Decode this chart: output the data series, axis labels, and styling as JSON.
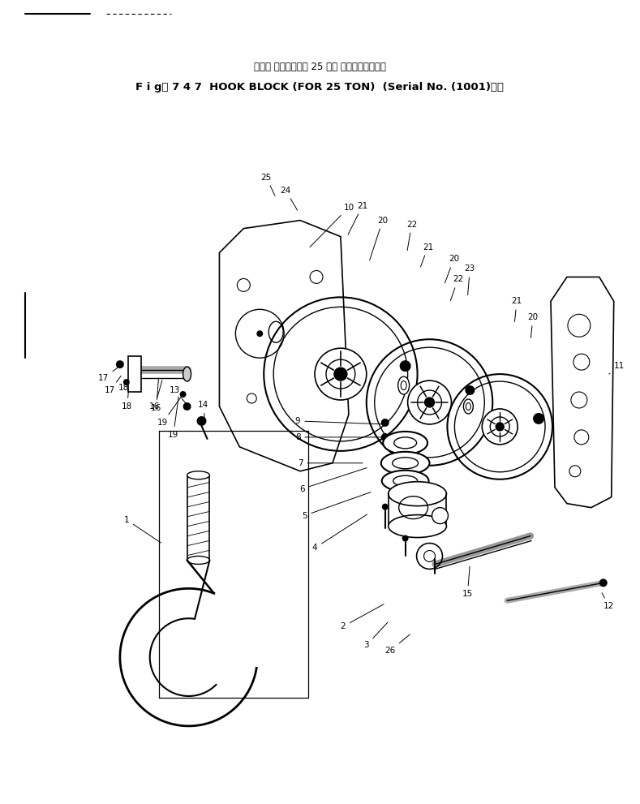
{
  "bg_color": "#ffffff",
  "line_color": "#000000",
  "title_line1": "フック ブロック　　 25 トン 用　　（適用号機",
  "title_line2": "F i g． 7 4 7  HOOK BLOCK (FOR 25 TON)  (Serial No. (1001)～）",
  "figsize": [
    7.89,
    9.91
  ],
  "dpi": 100
}
